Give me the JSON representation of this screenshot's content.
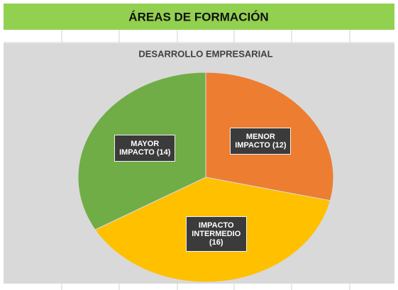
{
  "header": {
    "title": "ÁREAS DE FORMACIÓN"
  },
  "chart_data": {
    "type": "pie",
    "title": "DESARROLLO EMPRESARIAL",
    "categories": [
      "MENOR IMPACTO",
      "IMPACTO INTERMEDIO",
      "MAYOR IMPACTO"
    ],
    "values": [
      12,
      16,
      14
    ],
    "value_labels": [
      "(12)",
      "(16)",
      "(14)"
    ],
    "colors": [
      "#ed7d31",
      "#ffc000",
      "#70ad47"
    ]
  }
}
